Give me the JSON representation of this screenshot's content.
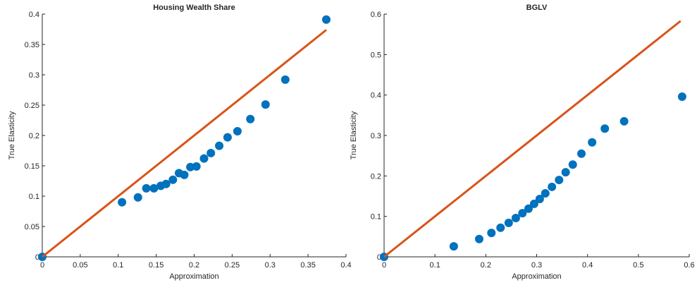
{
  "chart_data": [
    {
      "type": "scatter",
      "title": "Housing Wealth Share",
      "xlabel": "Approximation",
      "ylabel": "True Elasticity",
      "xlim": [
        0,
        0.4
      ],
      "xticks": [
        0,
        0.05,
        0.1,
        0.15,
        0.2,
        0.25,
        0.3,
        0.35,
        0.4
      ],
      "ylim": [
        0,
        0.4
      ],
      "yticks": [
        0,
        0.05,
        0.1,
        0.15,
        0.2,
        0.25,
        0.3,
        0.35,
        0.4
      ],
      "series": [
        {
          "mode": "markers",
          "color": "#0072bd",
          "x": [
            0,
            0.105,
            0.126,
            0.137,
            0.147,
            0.156,
            0.163,
            0.172,
            0.18,
            0.187,
            0.195,
            0.203,
            0.213,
            0.222,
            0.233,
            0.244,
            0.257,
            0.274,
            0.294,
            0.32,
            0.374
          ],
          "values": [
            0,
            0.09,
            0.098,
            0.113,
            0.113,
            0.117,
            0.12,
            0.127,
            0.138,
            0.135,
            0.148,
            0.149,
            0.162,
            0.171,
            0.183,
            0.197,
            0.207,
            0.227,
            0.251,
            0.292,
            0.391
          ]
        },
        {
          "mode": "line",
          "color": "#d95319",
          "x": [
            0,
            0.374
          ],
          "values": [
            0,
            0.374
          ]
        }
      ]
    },
    {
      "type": "scatter",
      "title": "BGLV",
      "xlabel": "Approximation",
      "ylabel": "True Elasticity",
      "xlim": [
        0,
        0.6
      ],
      "xticks": [
        0,
        0.1,
        0.2,
        0.3,
        0.4,
        0.5,
        0.6
      ],
      "ylim": [
        0,
        0.6
      ],
      "yticks": [
        0,
        0.1,
        0.2,
        0.3,
        0.4,
        0.5,
        0.6
      ],
      "series": [
        {
          "mode": "markers",
          "color": "#0072bd",
          "x": [
            0,
            0.137,
            0.187,
            0.211,
            0.229,
            0.245,
            0.259,
            0.272,
            0.284,
            0.295,
            0.306,
            0.317,
            0.33,
            0.344,
            0.357,
            0.371,
            0.388,
            0.409,
            0.434,
            0.472,
            0.586
          ],
          "values": [
            0,
            0.026,
            0.044,
            0.059,
            0.072,
            0.084,
            0.096,
            0.108,
            0.119,
            0.131,
            0.143,
            0.157,
            0.173,
            0.19,
            0.209,
            0.228,
            0.255,
            0.283,
            0.317,
            0.335,
            0.396
          ]
        },
        {
          "mode": "line",
          "color": "#d95319",
          "x": [
            0,
            0.583
          ],
          "values": [
            0,
            0.583
          ]
        }
      ]
    }
  ]
}
